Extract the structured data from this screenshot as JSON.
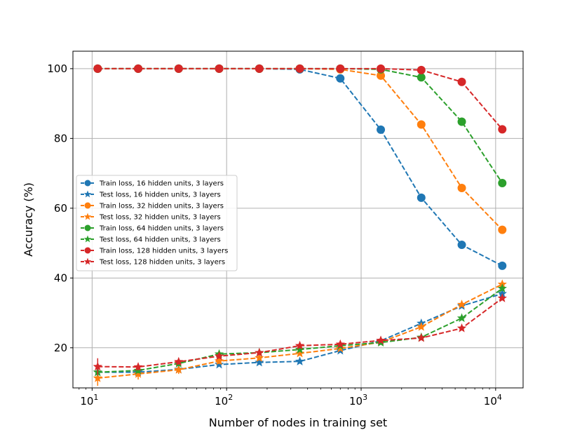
{
  "chart_data": {
    "type": "line",
    "title": "",
    "xlabel": "Number of nodes in training set",
    "ylabel": "Accuracy (%)",
    "xscale": "log",
    "xlim": [
      7.2,
      16000
    ],
    "ylim": [
      8.5,
      105
    ],
    "grid": true,
    "legend_position": "center-left",
    "xticks": [
      {
        "value": 10,
        "base": "10",
        "exp": "1"
      },
      {
        "value": 100,
        "base": "10",
        "exp": "2"
      },
      {
        "value": 1000,
        "base": "10",
        "exp": "3"
      },
      {
        "value": 10000,
        "base": "10",
        "exp": "4"
      }
    ],
    "yticks": [
      20,
      40,
      60,
      80,
      100
    ],
    "x": [
      11,
      22,
      44,
      88,
      175,
      350,
      700,
      1400,
      2800,
      5600,
      11200
    ],
    "series": [
      {
        "name": "Train loss, 16 hidden units, 3 layers",
        "color": "#1f77b4",
        "marker": "circle",
        "values": [
          100,
          100,
          100,
          100,
          100,
          99.8,
          97.2,
          82.5,
          63.0,
          49.5,
          43.5
        ]
      },
      {
        "name": "Test loss, 16 hidden units, 3 layers",
        "color": "#1f77b4",
        "marker": "star",
        "values": [
          13.0,
          13.0,
          13.8,
          15.2,
          15.8,
          16.1,
          19.2,
          22.0,
          27.0,
          32.0,
          35.5
        ],
        "errors": [
          1.0,
          0.8,
          0.7,
          0.5,
          0.4,
          0.3,
          0.3,
          0.3,
          0.3,
          0.3,
          0.3
        ]
      },
      {
        "name": "Train loss, 32 hidden units, 3 layers",
        "color": "#ff7f0e",
        "marker": "circle",
        "values": [
          100,
          100,
          100,
          100,
          100,
          100,
          99.8,
          98.0,
          84.0,
          65.8,
          53.8
        ]
      },
      {
        "name": "Test loss, 32 hidden units, 3 layers",
        "color": "#ff7f0e",
        "marker": "star",
        "values": [
          11.3,
          12.5,
          13.7,
          16.2,
          17.1,
          18.4,
          19.8,
          21.6,
          26.0,
          32.4,
          38.2
        ],
        "errors": [
          2.2,
          1.6,
          1.2,
          0.9,
          0.7,
          0.6,
          0.4,
          0.3,
          0.3,
          0.3,
          0.3
        ]
      },
      {
        "name": "Train loss, 64 hidden units, 3 layers",
        "color": "#2ca02c",
        "marker": "circle",
        "values": [
          100,
          100,
          100,
          100,
          100,
          100,
          100,
          99.8,
          97.5,
          84.8,
          67.2
        ]
      },
      {
        "name": "Test loss, 64 hidden units, 3 layers",
        "color": "#2ca02c",
        "marker": "star",
        "values": [
          13.0,
          13.5,
          15.5,
          18.2,
          18.6,
          19.5,
          20.6,
          21.5,
          23.0,
          28.5,
          37.0
        ],
        "errors": [
          1.0,
          0.8,
          0.8,
          0.6,
          0.5,
          0.4,
          0.3,
          0.3,
          0.3,
          0.3,
          0.3
        ]
      },
      {
        "name": "Train loss, 128 hidden units, 3 layers",
        "color": "#d62728",
        "marker": "circle",
        "values": [
          100,
          100,
          100,
          100,
          100,
          100,
          100,
          100,
          99.6,
          96.2,
          82.6
        ]
      },
      {
        "name": "Test loss, 128 hidden units, 3 layers",
        "color": "#d62728",
        "marker": "star",
        "values": [
          14.6,
          14.5,
          16.0,
          17.6,
          18.6,
          20.6,
          21.0,
          22.1,
          22.8,
          25.6,
          34.2
        ],
        "errors": [
          2.4,
          1.0,
          0.8,
          0.6,
          0.5,
          0.5,
          0.4,
          0.3,
          0.3,
          0.3,
          0.3
        ]
      }
    ]
  }
}
